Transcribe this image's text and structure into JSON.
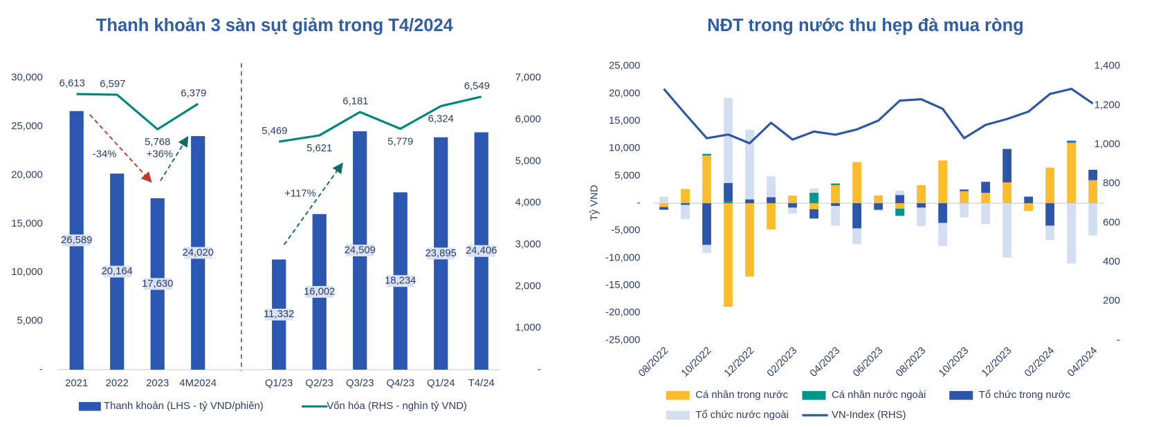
{
  "chart_data": [
    {
      "type": "combo",
      "title": "Thanh khoản 3 sàn sụt giảm trong T4/2024",
      "categories": [
        "2021",
        "2022",
        "2023",
        "4M2024",
        null,
        "Q1/23",
        "Q2/23",
        "Q3/23",
        "Q4/23",
        "Q1/24",
        "T4/24"
      ],
      "series": [
        {
          "name": "Thanh khoản (LHS - tỷ VND/phiên)",
          "type": "bar",
          "color": "#2b57b0",
          "values": [
            26589,
            20164,
            17630,
            24020,
            null,
            11332,
            16002,
            24509,
            18234,
            23895,
            24406
          ],
          "value_labels": [
            "26,589",
            "20,164",
            "17,630",
            "24,020",
            null,
            "11,332",
            "16,002",
            "24,509",
            "18,234",
            "23,895",
            "24,406"
          ]
        },
        {
          "name": "Vốn hóa (RHS - nghìn tỷ VND)",
          "type": "line",
          "axis": "y2",
          "color": "#00897b",
          "values": [
            6613,
            6597,
            5768,
            6379,
            null,
            5469,
            5621,
            6181,
            5779,
            6324,
            6549
          ],
          "value_labels": [
            "6,613",
            "6,597",
            "5,768",
            "6,379",
            null,
            "5,469",
            "5,621",
            "6,181",
            "5,779",
            "6,324",
            "6,549"
          ]
        }
      ],
      "ylim": [
        0,
        30000
      ],
      "yticks": [
        {
          "value": 0,
          "label": "-"
        },
        {
          "value": 5000,
          "label": "5,000"
        },
        {
          "value": 10000,
          "label": "10,000"
        },
        {
          "value": 15000,
          "label": "15,000"
        },
        {
          "value": 20000,
          "label": "20,000"
        },
        {
          "value": 25000,
          "label": "25,000"
        },
        {
          "value": 30000,
          "label": "30,000"
        }
      ],
      "y2lim": [
        0,
        7000
      ],
      "y2ticks": [
        {
          "value": 0,
          "label": "-"
        },
        {
          "value": 1000,
          "label": "1,000"
        },
        {
          "value": 2000,
          "label": "2,000"
        },
        {
          "value": 3000,
          "label": "3,000"
        },
        {
          "value": 4000,
          "label": "4,000"
        },
        {
          "value": 5000,
          "label": "5,000"
        },
        {
          "value": 6000,
          "label": "6,000"
        },
        {
          "value": 7000,
          "label": "7,000"
        }
      ],
      "annotations": [
        {
          "text": "-34%",
          "color": "#c0392b"
        },
        {
          "text": "+36%",
          "color": "#0b6e5f"
        },
        {
          "text": "+117%",
          "color": "#0b6e5f"
        }
      ],
      "stacked": false
    },
    {
      "type": "combo",
      "title": "NĐT trong nước thu hẹp đà mua ròng",
      "ylabel": "Tỷ VND",
      "categories": [
        "08/2022",
        null,
        "10/2022",
        null,
        "12/2022",
        null,
        "02/2023",
        null,
        "04/2023",
        null,
        "06/2023",
        null,
        "08/2023",
        null,
        "10/2023",
        null,
        "12/2023",
        null,
        "02/2024",
        null,
        "04/2024"
      ],
      "series": [
        {
          "name": "Cá nhân trong nước",
          "type": "bar",
          "color": "#fbbd2e",
          "values": [
            -700,
            2600,
            8700,
            -18900,
            -13400,
            -4800,
            1400,
            -1100,
            3300,
            7500,
            1400,
            -1000,
            3300,
            7800,
            2200,
            1900,
            3800,
            -1400,
            6500,
            11000,
            4200
          ]
        },
        {
          "name": "Cá nhân nước ngoài",
          "type": "bar",
          "color": "#00968a",
          "values": [
            0,
            0,
            300,
            300,
            0,
            0,
            0,
            1900,
            300,
            0,
            0,
            -1300,
            0,
            0,
            0,
            0,
            0,
            0,
            0,
            200,
            0
          ]
        },
        {
          "name": "Tổ chức trong nước",
          "type": "bar",
          "color": "#2d55a8",
          "values": [
            -500,
            -300,
            -7600,
            3400,
            700,
            1100,
            -800,
            -1700,
            -500,
            -4600,
            -1200,
            1500,
            -800,
            -3600,
            300,
            2000,
            6100,
            1200,
            -4100,
            200,
            1900
          ]
        },
        {
          "name": "Tổ chức nước ngoài",
          "type": "bar",
          "color": "#d4def3",
          "values": [
            1200,
            -2600,
            -1500,
            15500,
            12700,
            3800,
            -1100,
            800,
            -3600,
            -2900,
            -200,
            800,
            -3400,
            -4200,
            -2600,
            -3800,
            -9900,
            0,
            -2600,
            -11000,
            -5900
          ]
        },
        {
          "name": "VN-Index (RHS)",
          "type": "line",
          "axis": "y2",
          "color": "#2d55a8",
          "values": [
            1284,
            1156,
            1032,
            1051,
            1006,
            1111,
            1025,
            1066,
            1050,
            1077,
            1122,
            1224,
            1231,
            1182,
            1032,
            1100,
            1130,
            1168,
            1258,
            1284,
            1209
          ]
        }
      ],
      "ylim": [
        -25000,
        25000
      ],
      "yticks": [
        {
          "value": -25000,
          "label": "-25,000"
        },
        {
          "value": -20000,
          "label": "-20,000"
        },
        {
          "value": -15000,
          "label": "-15,000"
        },
        {
          "value": -10000,
          "label": "-10,000"
        },
        {
          "value": -5000,
          "label": "-5,000"
        },
        {
          "value": 0,
          "label": "-"
        },
        {
          "value": 5000,
          "label": "5,000"
        },
        {
          "value": 10000,
          "label": "10,000"
        },
        {
          "value": 15000,
          "label": "15,000"
        },
        {
          "value": 20000,
          "label": "20,000"
        },
        {
          "value": 25000,
          "label": "25,000"
        }
      ],
      "y2lim": [
        0,
        1400
      ],
      "y2ticks": [
        {
          "value": 0,
          "label": "-"
        },
        200,
        400,
        600,
        800,
        {
          "value": 1000,
          "label": "1,000"
        },
        {
          "value": 1200,
          "label": "1,200"
        },
        {
          "value": 1400,
          "label": "1,400"
        }
      ],
      "stacked": true
    }
  ]
}
